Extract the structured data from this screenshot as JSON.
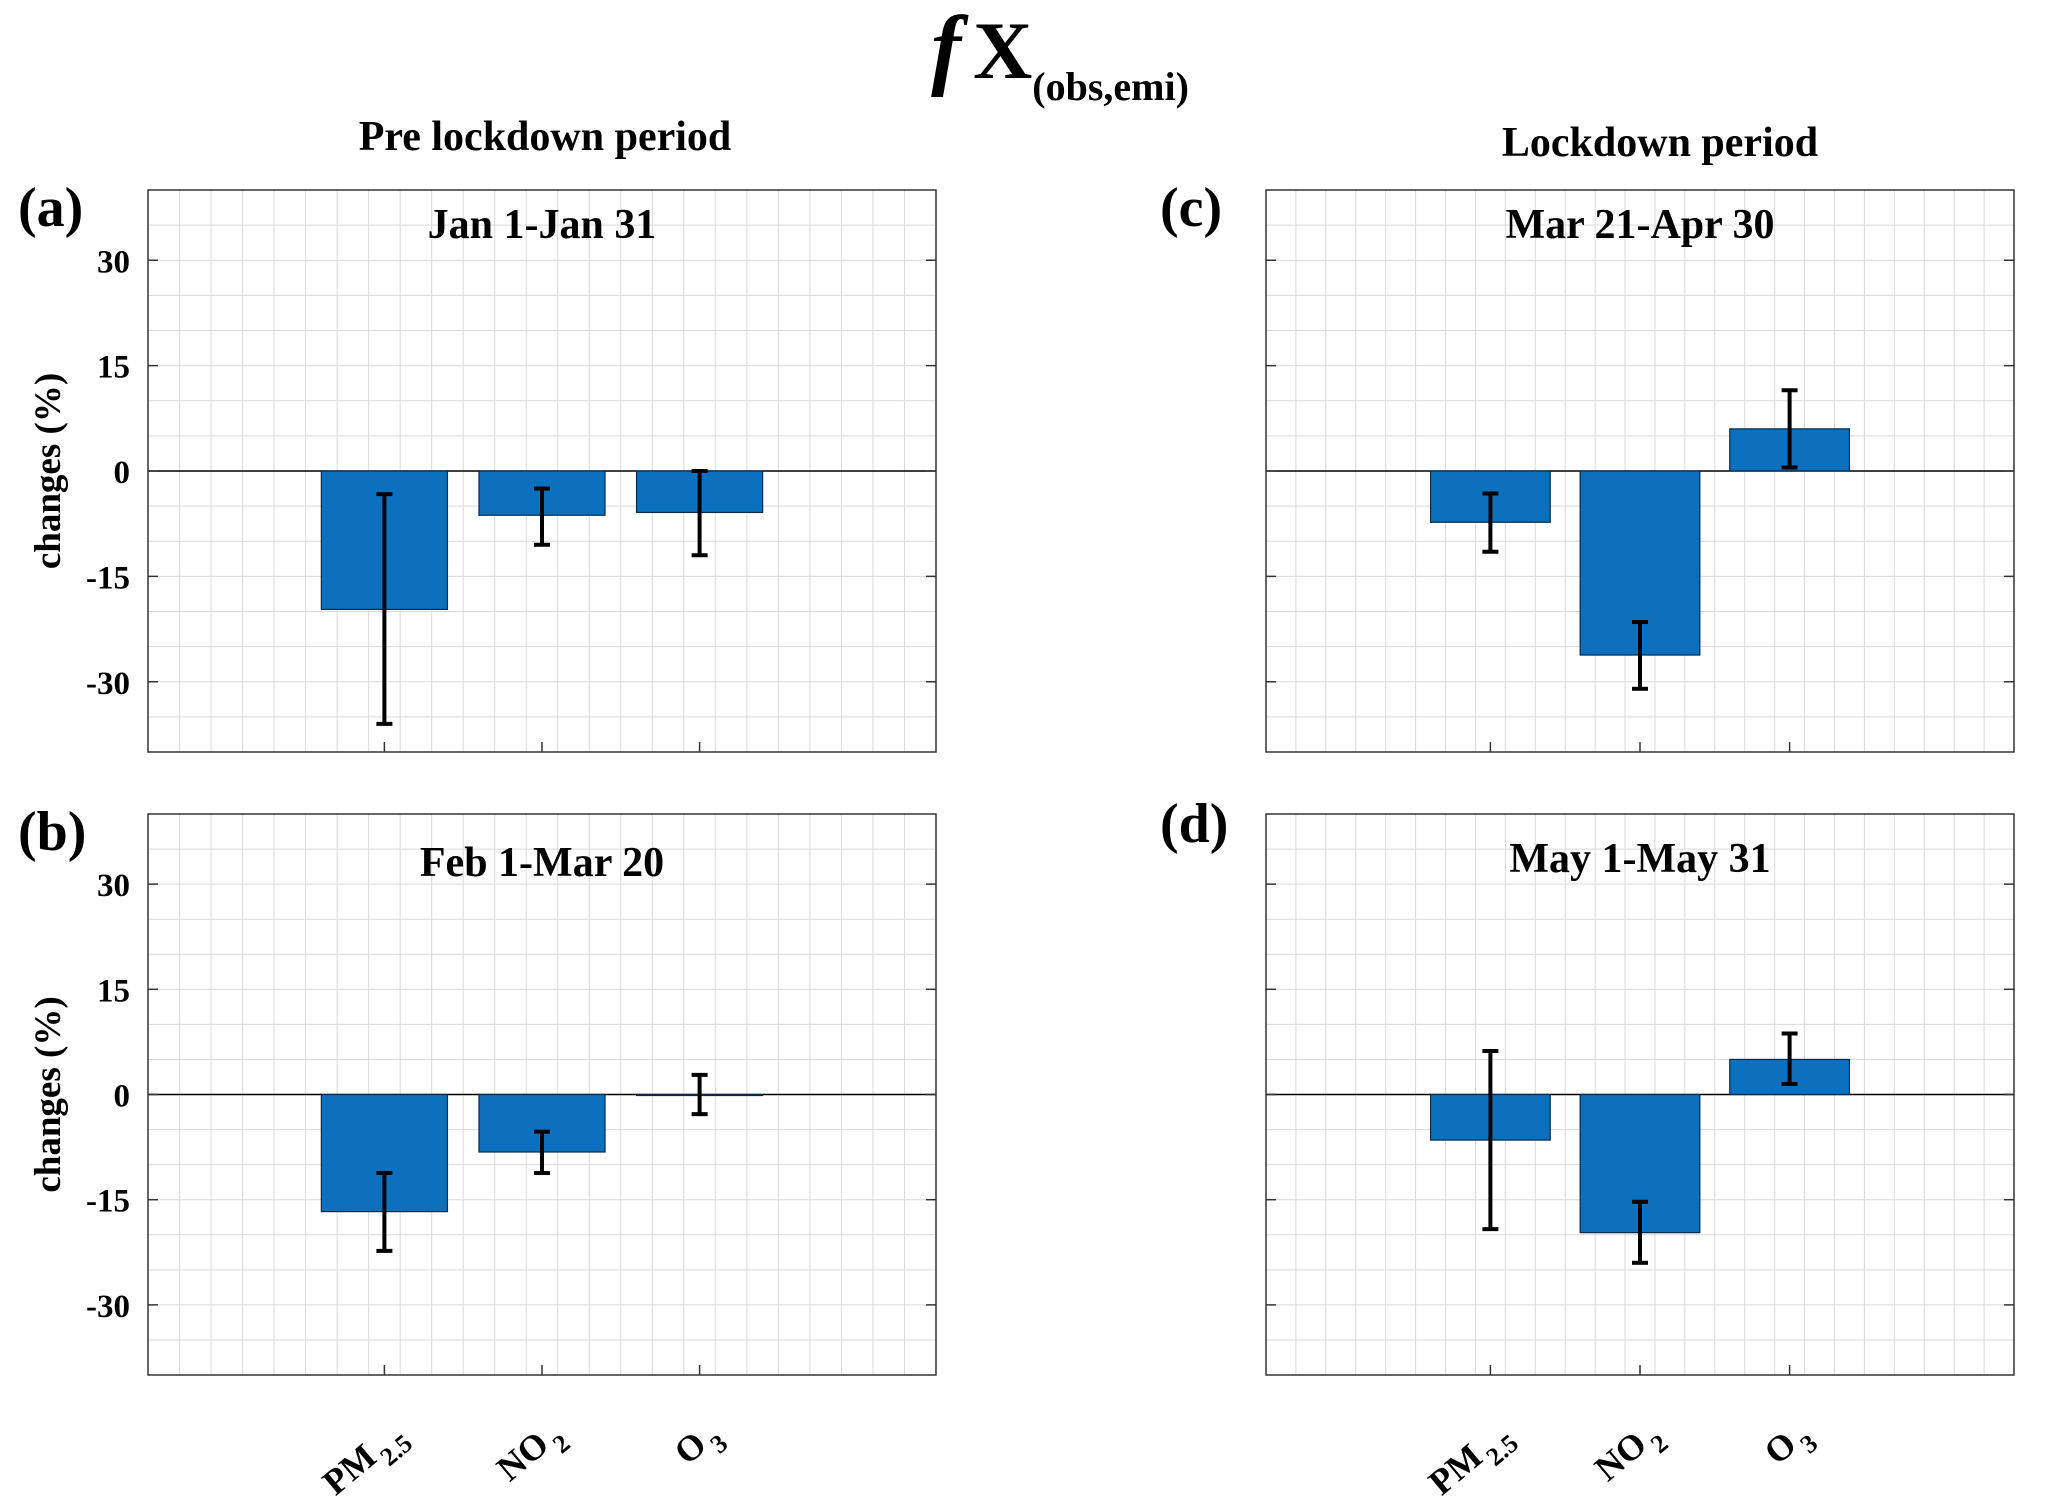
{
  "figure": {
    "title_symbol": "f",
    "title_main": "X",
    "title_subscript": "(obs,emi)",
    "column_titles": [
      "Pre lockdown period",
      "Lockdown period"
    ],
    "colors": {
      "bar": "#0B70BE",
      "bar_edge": "#0a2a4a",
      "errorbar": "#000000",
      "grid": "#d9d9d9",
      "axis": "#333333"
    }
  },
  "chart_data": [
    {
      "type": "bar",
      "panel_letter": "(a)",
      "title": "Jan 1-Jan 31",
      "categories": [
        "PM2.5",
        "NO2",
        "O3"
      ],
      "category_labels": [
        {
          "main": "PM",
          "sub": "2.5"
        },
        {
          "main": "NO",
          "sub": "2"
        },
        {
          "main": "O",
          "sub": "3"
        }
      ],
      "values": [
        -19.7,
        -6.3,
        -5.9
      ],
      "error_low": [
        -36.0,
        -10.5,
        -12.0
      ],
      "error_high": [
        -3.3,
        -2.5,
        0.0
      ],
      "ylabel": "changes (%)",
      "ylim": [
        -40,
        40
      ],
      "yticks": [
        "30",
        "15",
        "0",
        "-15",
        "-30"
      ],
      "ytick_values": [
        30,
        15,
        0,
        -15,
        -30
      ],
      "grid": true
    },
    {
      "type": "bar",
      "panel_letter": "(b)",
      "title": "Feb 1-Mar 20",
      "categories": [
        "PM2.5",
        "NO2",
        "O3"
      ],
      "category_labels": [
        {
          "main": "PM",
          "sub": "2.5"
        },
        {
          "main": "NO",
          "sub": "2"
        },
        {
          "main": "O",
          "sub": "3"
        }
      ],
      "values": [
        -16.7,
        -8.2,
        0.0
      ],
      "error_low": [
        -22.3,
        -11.2,
        -2.8
      ],
      "error_high": [
        -11.2,
        -5.3,
        2.8
      ],
      "ylabel": "changes (%)",
      "ylim": [
        -40,
        40
      ],
      "yticks": [
        "30",
        "15",
        "0",
        "-15",
        "-30"
      ],
      "ytick_values": [
        30,
        15,
        0,
        -15,
        -30
      ],
      "grid": true
    },
    {
      "type": "bar",
      "panel_letter": "(c)",
      "title": "Mar 21-Apr 30",
      "categories": [
        "PM2.5",
        "NO2",
        "O3"
      ],
      "category_labels": [
        {
          "main": "PM",
          "sub": "2.5"
        },
        {
          "main": "NO",
          "sub": "2"
        },
        {
          "main": "O",
          "sub": "3"
        }
      ],
      "values": [
        -7.3,
        -26.2,
        6.0
      ],
      "error_low": [
        -11.5,
        -31.0,
        0.5
      ],
      "error_high": [
        -3.2,
        -21.5,
        11.5
      ],
      "ylabel": "",
      "ylim": [
        -40,
        40
      ],
      "yticks": [],
      "ytick_values": [
        30,
        15,
        0,
        -15,
        -30
      ],
      "grid": true
    },
    {
      "type": "bar",
      "panel_letter": "(d)",
      "title": "May 1-May 31",
      "categories": [
        "PM2.5",
        "NO2",
        "O3"
      ],
      "category_labels": [
        {
          "main": "PM",
          "sub": "2.5"
        },
        {
          "main": "NO",
          "sub": "2"
        },
        {
          "main": "O",
          "sub": "3"
        }
      ],
      "values": [
        -6.5,
        -19.7,
        5.0
      ],
      "error_low": [
        -19.2,
        -24.0,
        1.5
      ],
      "error_high": [
        6.2,
        -15.3,
        8.7
      ],
      "ylabel": "",
      "ylim": [
        -40,
        40
      ],
      "yticks": [],
      "ytick_values": [
        30,
        15,
        0,
        -15,
        -30
      ],
      "grid": true
    }
  ]
}
